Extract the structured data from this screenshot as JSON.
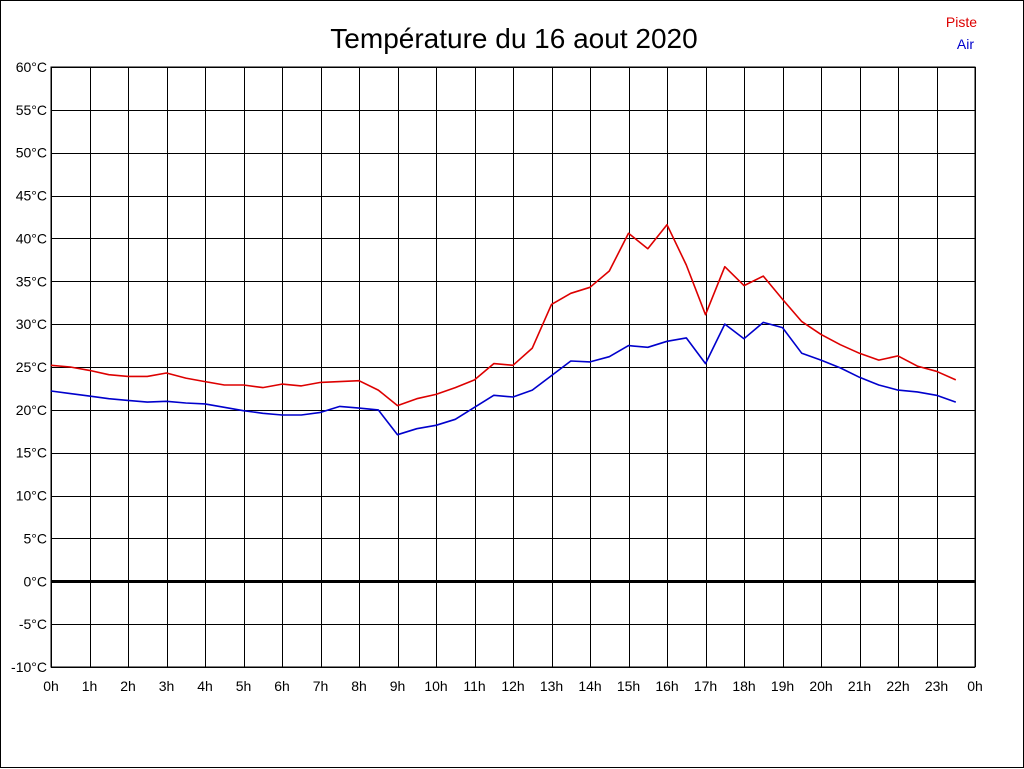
{
  "chart_data": {
    "type": "line",
    "title": "Température du 16 aout 2020",
    "x_tick_labels": [
      "0h",
      "1h",
      "2h",
      "3h",
      "4h",
      "5h",
      "6h",
      "7h",
      "8h",
      "9h",
      "10h",
      "11h",
      "12h",
      "13h",
      "14h",
      "15h",
      "16h",
      "17h",
      "18h",
      "19h",
      "20h",
      "21h",
      "22h",
      "23h",
      "0h"
    ],
    "y_tick_labels": [
      "60°C",
      "55°C",
      "50°C",
      "45°C",
      "40°C",
      "35°C",
      "30°C",
      "25°C",
      "20°C",
      "15°C",
      "10°C",
      "5°C",
      "0°C",
      "-5°C",
      "-10°C"
    ],
    "xlim": [
      0,
      24
    ],
    "ylim": [
      -10,
      60
    ],
    "grid": true,
    "legend_position": "top-right",
    "x": [
      0,
      0.5,
      1,
      1.5,
      2,
      2.5,
      3,
      3.5,
      4,
      4.5,
      5,
      5.5,
      6,
      6.5,
      7,
      7.5,
      8,
      8.5,
      9,
      9.5,
      10,
      10.5,
      11,
      11.5,
      12,
      12.5,
      13,
      13.5,
      14,
      14.5,
      15,
      15.5,
      16,
      16.5,
      17,
      17.5,
      18,
      18.5,
      19,
      19.5,
      20,
      20.5,
      21,
      21.5,
      22,
      22.5,
      23,
      23.5
    ],
    "series": [
      {
        "name": "Piste",
        "color": "#dd0000",
        "values": [
          25.2,
          25.0,
          24.6,
          24.1,
          23.9,
          23.9,
          24.3,
          23.7,
          23.3,
          22.9,
          22.9,
          22.6,
          23.0,
          22.8,
          23.2,
          23.3,
          23.4,
          22.3,
          20.5,
          21.3,
          21.8,
          22.6,
          23.5,
          25.4,
          25.2,
          27.2,
          32.3,
          33.6,
          34.3,
          36.2,
          40.6,
          38.8,
          41.6,
          36.9,
          31.1,
          36.7,
          34.5,
          35.6,
          32.9,
          30.3,
          28.8,
          27.6,
          26.6,
          25.8,
          26.3,
          25.1,
          24.5,
          23.5
        ]
      },
      {
        "name": "Air",
        "color": "#0000cc",
        "values": [
          22.2,
          21.9,
          21.6,
          21.3,
          21.1,
          20.9,
          21.0,
          20.8,
          20.7,
          20.3,
          19.9,
          19.6,
          19.4,
          19.4,
          19.7,
          20.4,
          20.2,
          20.0,
          17.1,
          17.8,
          18.2,
          18.9,
          20.3,
          21.7,
          21.5,
          22.3,
          24.0,
          25.7,
          25.6,
          26.2,
          27.5,
          27.3,
          28.0,
          28.4,
          25.4,
          30.0,
          28.3,
          30.2,
          29.6,
          26.6,
          25.8,
          24.9,
          23.8,
          22.9,
          22.3,
          22.1,
          21.7,
          20.9
        ]
      }
    ]
  }
}
